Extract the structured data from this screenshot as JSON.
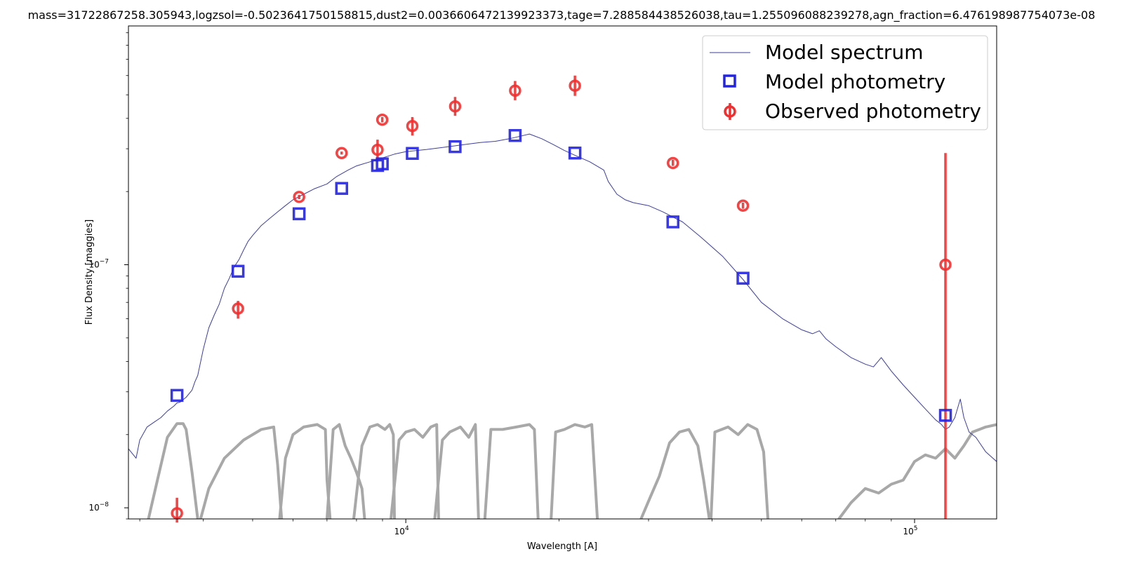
{
  "chart_data": {
    "type": "scatter",
    "title": "mass=31722867258.305943,logzsol=-0.5023641750158815,dust2=0.0036606472139923373,tage=7.288584438526038,tau=1.255096088239278,agn_fraction=6.476198987754073e-08",
    "xlabel": "Wavelength [A]",
    "ylabel": "Flux Density [maggies]",
    "xscale": "log",
    "yscale": "log",
    "xlim": [
      2850,
      145000
    ],
    "ylim": [
      9e-09,
      9.6e-07
    ],
    "x_ticks": [
      {
        "value": 10000,
        "base": "10",
        "exp": "4"
      },
      {
        "value": 100000,
        "base": "10",
        "exp": "5"
      }
    ],
    "y_ticks": [
      {
        "value": 1e-08,
        "base": "10",
        "exp": "−8"
      },
      {
        "value": 1e-07,
        "base": "10",
        "exp": "−7"
      }
    ],
    "grid": false,
    "legend_position": "top-right",
    "legend": [
      {
        "label": "Model spectrum",
        "marker": "line",
        "color": "#3d3d9e"
      },
      {
        "label": "Model photometry",
        "marker": "square",
        "color": "#2424e0"
      },
      {
        "label": "Observed photometry",
        "marker": "circle-errorbar",
        "color": "#f03030"
      }
    ],
    "series": [
      {
        "name": "Model spectrum",
        "style": "line",
        "color": "#3d3d9e",
        "x": [
          2850,
          2950,
          3000,
          3100,
          3200,
          3300,
          3400,
          3500,
          3550,
          3600,
          3700,
          3800,
          3850,
          3900,
          4000,
          4100,
          4200,
          4300,
          4400,
          4500,
          4600,
          4700,
          4800,
          4900,
          5000,
          5200,
          5400,
          5600,
          5800,
          6000,
          6300,
          6600,
          7000,
          7300,
          7700,
          8000,
          8500,
          9000,
          9500,
          10000,
          11000,
          12000,
          13000,
          14000,
          15000,
          16000,
          16800,
          17500,
          18500,
          19500,
          20500,
          21500,
          23000,
          24500,
          25000,
          26000,
          27000,
          28000,
          30000,
          32000,
          35000,
          38000,
          42000,
          46000,
          50000,
          55000,
          60000,
          63000,
          65000,
          67000,
          70000,
          75000,
          80000,
          83000,
          86000,
          90000,
          95000,
          100000,
          105000,
          110000,
          113000,
          115000,
          117000,
          120000,
          123000,
          125000,
          128000,
          132000,
          138000,
          145000
        ],
        "y": [
          1.75e-08,
          1.6e-08,
          1.9e-08,
          2.15e-08,
          2.25e-08,
          2.35e-08,
          2.5e-08,
          2.62e-08,
          2.7e-08,
          2.72e-08,
          2.85e-08,
          3.05e-08,
          3.3e-08,
          3.5e-08,
          4.5e-08,
          5.5e-08,
          6.2e-08,
          6.9e-08,
          8e-08,
          8.8e-08,
          9.8e-08,
          1.05e-07,
          1.15e-07,
          1.25e-07,
          1.32e-07,
          1.45e-07,
          1.55e-07,
          1.65e-07,
          1.75e-07,
          1.85e-07,
          1.95e-07,
          2.05e-07,
          2.15e-07,
          2.3e-07,
          2.45e-07,
          2.55e-07,
          2.65e-07,
          2.75e-07,
          2.85e-07,
          2.92e-07,
          2.98e-07,
          3.05e-07,
          3.12e-07,
          3.18e-07,
          3.22e-07,
          3.3e-07,
          3.38e-07,
          3.45e-07,
          3.3e-07,
          3.12e-07,
          2.95e-07,
          2.82e-07,
          2.65e-07,
          2.45e-07,
          2.2e-07,
          1.95e-07,
          1.85e-07,
          1.8e-07,
          1.75e-07,
          1.65e-07,
          1.5e-07,
          1.3e-07,
          1.08e-07,
          8.7e-08,
          7e-08,
          6e-08,
          5.4e-08,
          5.2e-08,
          5.35e-08,
          4.95e-08,
          4.6e-08,
          4.15e-08,
          3.9e-08,
          3.8e-08,
          4.15e-08,
          3.65e-08,
          3.2e-08,
          2.85e-08,
          2.55e-08,
          2.3e-08,
          2.2e-08,
          2.1e-08,
          2.15e-08,
          2.35e-08,
          2.8e-08,
          2.35e-08,
          2.05e-08,
          1.95e-08,
          1.7e-08,
          1.55e-08
        ]
      },
      {
        "name": "Model photometry",
        "style": "square",
        "color": "#2424e0",
        "x": [
          3550,
          4680,
          6170,
          7480,
          8800,
          8990,
          10300,
          12500,
          16400,
          21500,
          33500,
          46000,
          115000
        ],
        "y": [
          2.9e-08,
          9.4e-08,
          1.62e-07,
          2.06e-07,
          2.56e-07,
          2.6e-07,
          2.87e-07,
          3.06e-07,
          3.4e-07,
          2.88e-07,
          1.5e-07,
          8.8e-08,
          2.4e-08
        ]
      },
      {
        "name": "Observed photometry",
        "style": "circle-errorbar",
        "color": "#f03030",
        "x": [
          3550,
          4680,
          6170,
          7480,
          8800,
          8990,
          10300,
          12500,
          16400,
          21500,
          33500,
          46000,
          115000
        ],
        "y": [
          9.5e-09,
          6.6e-08,
          1.9e-07,
          2.88e-07,
          2.97e-07,
          3.95e-07,
          3.72e-07,
          4.48e-07,
          5.2e-07,
          5.45e-07,
          2.62e-07,
          1.75e-07,
          1e-07
        ],
        "y_err_low": [
          8.7e-09,
          6e-08,
          1.86e-07,
          2.84e-07,
          2.72e-07,
          3.85e-07,
          3.4e-07,
          4.1e-07,
          4.75e-07,
          4.95e-07,
          2.55e-07,
          1.7e-07,
          9e-09
        ],
        "y_err_high": [
          1.1e-08,
          7.1e-08,
          1.94e-07,
          2.92e-07,
          3.27e-07,
          4.05e-07,
          4.05e-07,
          4.9e-07,
          5.7e-07,
          6e-07,
          2.7e-07,
          1.8e-07,
          2.88e-07
        ]
      },
      {
        "name": "Filter transmission curves",
        "style": "line",
        "color": "#a8a8a8",
        "curves": [
          {
            "x": [
              3120,
              3250,
              3400,
              3550,
              3650,
              3700,
              3800,
              3900
            ],
            "y": [
              9e-09,
              1.3e-08,
              1.95e-08,
              2.22e-08,
              2.22e-08,
              2.1e-08,
              1.4e-08,
              9e-09
            ]
          },
          {
            "x": [
              3950,
              4100,
              4400,
              4800,
              5200,
              5500,
              5600,
              5700
            ],
            "y": [
              9e-09,
              1.2e-08,
              1.6e-08,
              1.9e-08,
              2.1e-08,
              2.15e-08,
              1.5e-08,
              9e-09
            ]
          },
          {
            "x": [
              5650,
              5800,
              6000,
              6300,
              6700,
              6950,
              7000,
              7100
            ],
            "y": [
              9e-09,
              1.6e-08,
              2e-08,
              2.15e-08,
              2.2e-08,
              2.1e-08,
              1.3e-08,
              9e-09
            ]
          },
          {
            "x": [
              7000,
              7200,
              7400,
              7600,
              7800,
              8000,
              8200,
              8300
            ],
            "y": [
              9e-09,
              2.1e-08,
              2.2e-08,
              1.8e-08,
              1.6e-08,
              1.4e-08,
              1.2e-08,
              9e-09
            ]
          },
          {
            "x": [
              7900,
              8200,
              8500,
              8800,
              9100,
              9300,
              9450,
              9500
            ],
            "y": [
              9e-09,
              1.8e-08,
              2.15e-08,
              2.2e-08,
              2.1e-08,
              2.2e-08,
              2e-08,
              9e-09
            ]
          },
          {
            "x": [
              9350,
              9700,
              10000,
              10400,
              10800,
              11200,
              11500,
              11600
            ],
            "y": [
              9e-09,
              1.9e-08,
              2.05e-08,
              2.1e-08,
              1.95e-08,
              2.15e-08,
              2.2e-08,
              9e-09
            ]
          },
          {
            "x": [
              11400,
              11800,
              12200,
              12800,
              13300,
              13700,
              13900
            ],
            "y": [
              9e-09,
              1.9e-08,
              2.05e-08,
              2.15e-08,
              1.95e-08,
              2.2e-08,
              9e-09
            ]
          },
          {
            "x": [
              14300,
              14700,
              15500,
              16500,
              17500,
              17900,
              18200
            ],
            "y": [
              9e-09,
              2.1e-08,
              2.1e-08,
              2.15e-08,
              2.2e-08,
              2.1e-08,
              9e-09
            ]
          },
          {
            "x": [
              19300,
              19700,
              20500,
              21500,
              22500,
              23200,
              23800
            ],
            "y": [
              9e-09,
              2.05e-08,
              2.1e-08,
              2.2e-08,
              2.15e-08,
              2.2e-08,
              9e-09
            ]
          },
          {
            "x": [
              29000,
              30200,
              31500,
              33000,
              34500,
              36000,
              37500,
              38500,
              39500
            ],
            "y": [
              9e-09,
              1.1e-08,
              1.35e-08,
              1.85e-08,
              2.05e-08,
              2.1e-08,
              1.8e-08,
              1.3e-08,
              9e-09
            ]
          },
          {
            "x": [
              39800,
              40500,
              43000,
              45000,
              47000,
              49000,
              50500,
              51500
            ],
            "y": [
              9e-09,
              2.05e-08,
              2.15e-08,
              2e-08,
              2.2e-08,
              2.1e-08,
              1.7e-08,
              9e-09
            ]
          },
          {
            "x": [
              71000,
              75000,
              80000,
              85000,
              90000,
              95000,
              100000,
              105000,
              110000,
              115000,
              120000,
              125000,
              130000,
              138000,
              145000
            ],
            "y": [
              9e-09,
              1.05e-08,
              1.2e-08,
              1.15e-08,
              1.25e-08,
              1.3e-08,
              1.55e-08,
              1.65e-08,
              1.6e-08,
              1.75e-08,
              1.6e-08,
              1.8e-08,
              2.05e-08,
              2.15e-08,
              2.2e-08
            ]
          }
        ]
      }
    ]
  }
}
